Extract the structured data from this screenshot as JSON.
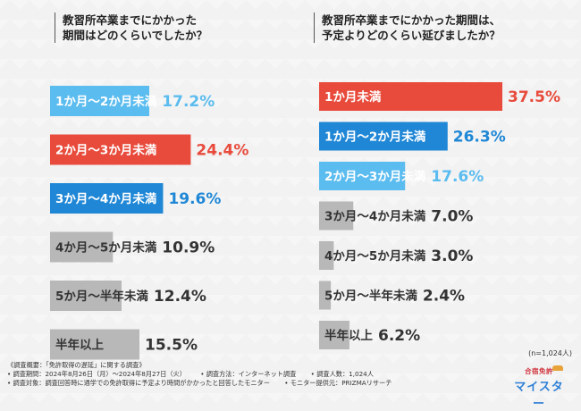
{
  "titles": {
    "left": [
      "教習所卒業までにかかった",
      "期間はどのくらいでしたか？"
    ],
    "right": [
      "教習所卒業までにかかった期間は、",
      "予定よりどのくらい延びましたか？"
    ]
  },
  "chart_data": [
    {
      "type": "bar",
      "orientation": "horizontal",
      "title": "教習所卒業までにかかった期間はどのくらいでしたか？",
      "categories": [
        "1か月〜2か月未満",
        "2か月〜3か月未満",
        "3か月〜4か月未満",
        "4か月〜5か月未満",
        "5か月〜半年未満",
        "半年以上"
      ],
      "values": [
        17.2,
        24.4,
        19.6,
        10.9,
        12.4,
        15.5
      ],
      "value_labels": [
        "17.2%",
        "24.4%",
        "19.6%",
        "10.9%",
        "12.4%",
        "15.5%"
      ],
      "unit": "%",
      "colors": [
        "#5bbcef",
        "#e84b3c",
        "#1f87d6",
        "#b8b8b8",
        "#b8b8b8",
        "#b8b8b8"
      ],
      "label_colors": [
        "#ffffff",
        "#ffffff",
        "#ffffff",
        "#333333",
        "#333333",
        "#333333"
      ],
      "value_colors": [
        "#5bbcef",
        "#e84b3c",
        "#1f87d6",
        "#333333",
        "#333333",
        "#333333"
      ]
    },
    {
      "type": "bar",
      "orientation": "horizontal",
      "title": "教習所卒業までにかかった期間は、予定よりどのくらい延びましたか？",
      "categories": [
        "1か月未満",
        "1か月〜2か月未満",
        "2か月〜3か月未満",
        "3か月〜4か月未満",
        "4か月〜5か月未満",
        "5か月〜半年未満",
        "半年以上"
      ],
      "values": [
        37.5,
        26.3,
        17.6,
        7.0,
        3.0,
        2.4,
        6.2
      ],
      "value_labels": [
        "37.5%",
        "26.3%",
        "17.6%",
        "7.0%",
        "3.0%",
        "2.4%",
        "6.2%"
      ],
      "unit": "%",
      "colors": [
        "#e84b3c",
        "#1f87d6",
        "#5bbcef",
        "#b8b8b8",
        "#b8b8b8",
        "#b8b8b8",
        "#b8b8b8"
      ],
      "label_colors": [
        "#ffffff",
        "#ffffff",
        "#ffffff",
        "#333333",
        "#333333",
        "#333333",
        "#333333"
      ],
      "value_colors": [
        "#e84b3c",
        "#1f87d6",
        "#5bbcef",
        "#333333",
        "#333333",
        "#333333",
        "#333333"
      ]
    }
  ],
  "sample_size": "(n=1,024人)",
  "footer": {
    "heading": "《調査概要：「免許取得の遅延」に関する調査》",
    "period": "• 調査期間：2024年8月26日（月）～2024年8月27日（火）",
    "method": "• 調査方法：インターネット調査",
    "count": "• 調査人数：1,024人",
    "target": "• 調査対象：調査回答時に通学での免許取得に予定より時間がかかったと回答したモニター",
    "provider": "• モニター提供元：PRIZMAリサーチ"
  },
  "logo": {
    "sub": "合宿免許",
    "main": "マイスター"
  }
}
